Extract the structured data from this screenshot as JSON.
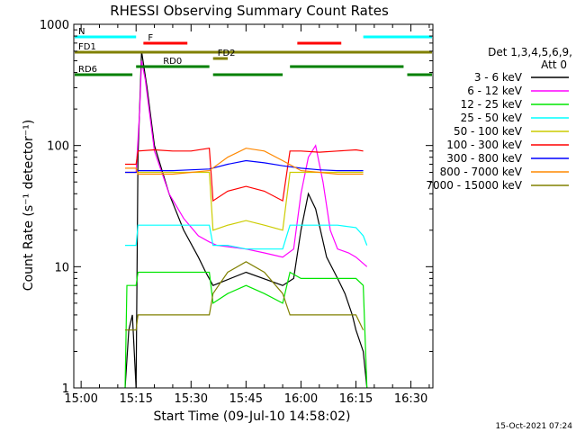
{
  "chart_data": {
    "type": "line",
    "title": "RHESSI Observing Summary Count Rates",
    "xlabel": "Start Time (09-Jul-10 14:58:02)",
    "ylabel": "Count Rate (s⁻¹ detector⁻¹)",
    "yscale": "log",
    "ylim": [
      1,
      1000
    ],
    "xlim_minutes": [
      -2,
      38
    ],
    "x_ticks": [
      {
        "t": 0,
        "label": "15:00"
      },
      {
        "t": 15,
        "label": "15:15"
      },
      {
        "t": 30,
        "label": "15:30"
      },
      {
        "t": 45,
        "label": "15:45"
      },
      {
        "t": 60,
        "label": "16:00"
      },
      {
        "t": 75,
        "label": "16:15"
      },
      {
        "t": 90,
        "label": "16:30"
      }
    ],
    "y_ticks": [
      {
        "v": 1,
        "label": "1"
      },
      {
        "v": 10,
        "label": "10"
      },
      {
        "v": 100,
        "label": "100"
      },
      {
        "v": 1000,
        "label": "1000"
      }
    ],
    "legend": {
      "header": [
        "Det 1,3,4,5,6,9,",
        "Att 0"
      ],
      "placement": "right",
      "entries": [
        {
          "label": "3 - 6 keV",
          "color": "#000000"
        },
        {
          "label": "6 - 12 keV",
          "color": "#ff00ff"
        },
        {
          "label": "12 - 25 keV",
          "color": "#00e600"
        },
        {
          "label": "25 - 50 keV",
          "color": "#00ffff"
        },
        {
          "label": "50 - 100 keV",
          "color": "#cccc00"
        },
        {
          "label": "100 - 300 keV",
          "color": "#ff0000"
        },
        {
          "label": "300 - 800 keV",
          "color": "#0000ff"
        },
        {
          "label": "800 - 7000 keV",
          "color": "#ff8800"
        },
        {
          "label": "7000 - 15000 keV",
          "color": "#808000"
        }
      ]
    },
    "flag_bars": [
      {
        "label": "N",
        "color": "#00ffff",
        "segments": [
          [
            -2,
            15
          ],
          [
            77,
            96
          ]
        ]
      },
      {
        "label": "F",
        "color": "#ff0000",
        "segments": [
          [
            17,
            29
          ],
          [
            59,
            71
          ]
        ]
      },
      {
        "label": "FD1",
        "color": "#808000",
        "segments": [
          [
            -2,
            96
          ]
        ]
      },
      {
        "label": "FD2",
        "color": "#808000",
        "segments": [
          [
            36,
            40
          ]
        ]
      },
      {
        "label": "RD0",
        "color": "#008000",
        "segments": [
          [
            15,
            35
          ],
          [
            57,
            88
          ]
        ]
      },
      {
        "label": "RD6",
        "color": "#008000",
        "segments": [
          [
            -2,
            14
          ],
          [
            36,
            55
          ],
          [
            89,
            96
          ]
        ]
      }
    ],
    "series": [
      {
        "name": "3 - 6 keV",
        "color": "#000000",
        "points": [
          [
            12,
            1
          ],
          [
            13,
            3
          ],
          [
            14,
            4
          ],
          [
            15,
            1
          ],
          [
            15.5,
            80
          ],
          [
            16.5,
            600
          ],
          [
            18,
            300
          ],
          [
            20,
            100
          ],
          [
            24,
            40
          ],
          [
            28,
            20
          ],
          [
            32,
            12
          ],
          [
            34,
            9
          ],
          [
            36,
            7
          ],
          [
            45,
            9
          ],
          [
            55,
            7
          ],
          [
            58,
            8
          ],
          [
            60,
            20
          ],
          [
            62,
            40
          ],
          [
            64,
            30
          ],
          [
            67,
            12
          ],
          [
            70,
            8
          ],
          [
            72,
            6
          ],
          [
            74,
            4
          ],
          [
            75,
            3
          ],
          [
            77,
            2
          ],
          [
            78,
            1
          ]
        ]
      },
      {
        "name": "6 - 12 keV",
        "color": "#ff00ff",
        "points": [
          [
            12,
            60
          ],
          [
            14,
            60
          ],
          [
            15,
            60
          ],
          [
            16,
            200
          ],
          [
            16.5,
            500
          ],
          [
            17.5,
            350
          ],
          [
            20,
            90
          ],
          [
            24,
            40
          ],
          [
            28,
            25
          ],
          [
            32,
            18
          ],
          [
            35,
            16
          ],
          [
            37,
            15
          ],
          [
            45,
            14
          ],
          [
            50,
            13
          ],
          [
            55,
            12
          ],
          [
            58,
            14
          ],
          [
            60,
            40
          ],
          [
            62,
            80
          ],
          [
            64,
            100
          ],
          [
            66,
            50
          ],
          [
            68,
            20
          ],
          [
            70,
            14
          ],
          [
            73,
            13
          ],
          [
            75,
            12
          ],
          [
            78,
            10
          ]
        ]
      },
      {
        "name": "12 - 25 keV",
        "color": "#00e600",
        "points": [
          [
            12,
            1
          ],
          [
            12.5,
            7
          ],
          [
            13,
            7
          ],
          [
            15,
            7
          ],
          [
            15.5,
            9
          ],
          [
            20,
            9
          ],
          [
            25,
            9
          ],
          [
            30,
            9
          ],
          [
            35,
            9
          ],
          [
            36,
            5
          ],
          [
            40,
            6
          ],
          [
            45,
            7
          ],
          [
            50,
            6
          ],
          [
            55,
            5
          ],
          [
            57,
            9
          ],
          [
            60,
            8
          ],
          [
            65,
            8
          ],
          [
            70,
            8
          ],
          [
            75,
            8
          ],
          [
            77,
            7
          ],
          [
            78,
            1
          ]
        ]
      },
      {
        "name": "25 - 50 keV",
        "color": "#00ffff",
        "points": [
          [
            12,
            15
          ],
          [
            15,
            15
          ],
          [
            15.5,
            22
          ],
          [
            20,
            22
          ],
          [
            25,
            22
          ],
          [
            30,
            22
          ],
          [
            35,
            22
          ],
          [
            36,
            15
          ],
          [
            40,
            15
          ],
          [
            45,
            14
          ],
          [
            50,
            14
          ],
          [
            55,
            14
          ],
          [
            57,
            22
          ],
          [
            60,
            22
          ],
          [
            65,
            22
          ],
          [
            70,
            22
          ],
          [
            75,
            21
          ],
          [
            77,
            18
          ],
          [
            78,
            15
          ]
        ]
      },
      {
        "name": "50 - 100 keV",
        "color": "#cccc00",
        "points": [
          [
            12,
            60
          ],
          [
            15,
            60
          ],
          [
            15.5,
            60
          ],
          [
            20,
            60
          ],
          [
            25,
            60
          ],
          [
            30,
            60
          ],
          [
            35,
            60
          ],
          [
            36,
            20
          ],
          [
            40,
            22
          ],
          [
            45,
            24
          ],
          [
            50,
            22
          ],
          [
            55,
            20
          ],
          [
            57,
            60
          ],
          [
            60,
            60
          ],
          [
            65,
            60
          ],
          [
            70,
            60
          ],
          [
            75,
            60
          ],
          [
            77,
            60
          ]
        ]
      },
      {
        "name": "100 - 300 keV",
        "color": "#ff0000",
        "points": [
          [
            12,
            70
          ],
          [
            15,
            70
          ],
          [
            15.5,
            90
          ],
          [
            20,
            92
          ],
          [
            25,
            90
          ],
          [
            30,
            90
          ],
          [
            35,
            95
          ],
          [
            36,
            35
          ],
          [
            40,
            42
          ],
          [
            45,
            46
          ],
          [
            50,
            42
          ],
          [
            55,
            35
          ],
          [
            57,
            90
          ],
          [
            60,
            90
          ],
          [
            65,
            88
          ],
          [
            70,
            90
          ],
          [
            75,
            92
          ],
          [
            77,
            90
          ]
        ]
      },
      {
        "name": "300 - 800 keV",
        "color": "#0000ff",
        "points": [
          [
            12,
            60
          ],
          [
            15,
            60
          ],
          [
            15.5,
            62
          ],
          [
            20,
            62
          ],
          [
            25,
            62
          ],
          [
            30,
            63
          ],
          [
            35,
            64
          ],
          [
            40,
            70
          ],
          [
            45,
            75
          ],
          [
            50,
            72
          ],
          [
            55,
            68
          ],
          [
            60,
            65
          ],
          [
            65,
            63
          ],
          [
            70,
            62
          ],
          [
            75,
            62
          ],
          [
            77,
            62
          ]
        ]
      },
      {
        "name": "800 - 7000 keV",
        "color": "#ff8800",
        "points": [
          [
            12,
            65
          ],
          [
            15,
            65
          ],
          [
            15.5,
            58
          ],
          [
            20,
            58
          ],
          [
            25,
            58
          ],
          [
            30,
            60
          ],
          [
            35,
            62
          ],
          [
            40,
            80
          ],
          [
            45,
            95
          ],
          [
            50,
            90
          ],
          [
            55,
            75
          ],
          [
            60,
            62
          ],
          [
            65,
            60
          ],
          [
            70,
            58
          ],
          [
            75,
            58
          ],
          [
            77,
            58
          ]
        ]
      },
      {
        "name": "7000 - 15000 keV",
        "color": "#808000",
        "points": [
          [
            12,
            3
          ],
          [
            15,
            3
          ],
          [
            15.5,
            4
          ],
          [
            20,
            4
          ],
          [
            25,
            4
          ],
          [
            30,
            4
          ],
          [
            35,
            4
          ],
          [
            36,
            6
          ],
          [
            40,
            9
          ],
          [
            45,
            11
          ],
          [
            50,
            9
          ],
          [
            55,
            6
          ],
          [
            57,
            4
          ],
          [
            60,
            4
          ],
          [
            65,
            4
          ],
          [
            70,
            4
          ],
          [
            75,
            4
          ],
          [
            77,
            3
          ]
        ]
      }
    ],
    "grid": false
  },
  "footer": {
    "timestamp": "15-Oct-2021 07:24"
  }
}
